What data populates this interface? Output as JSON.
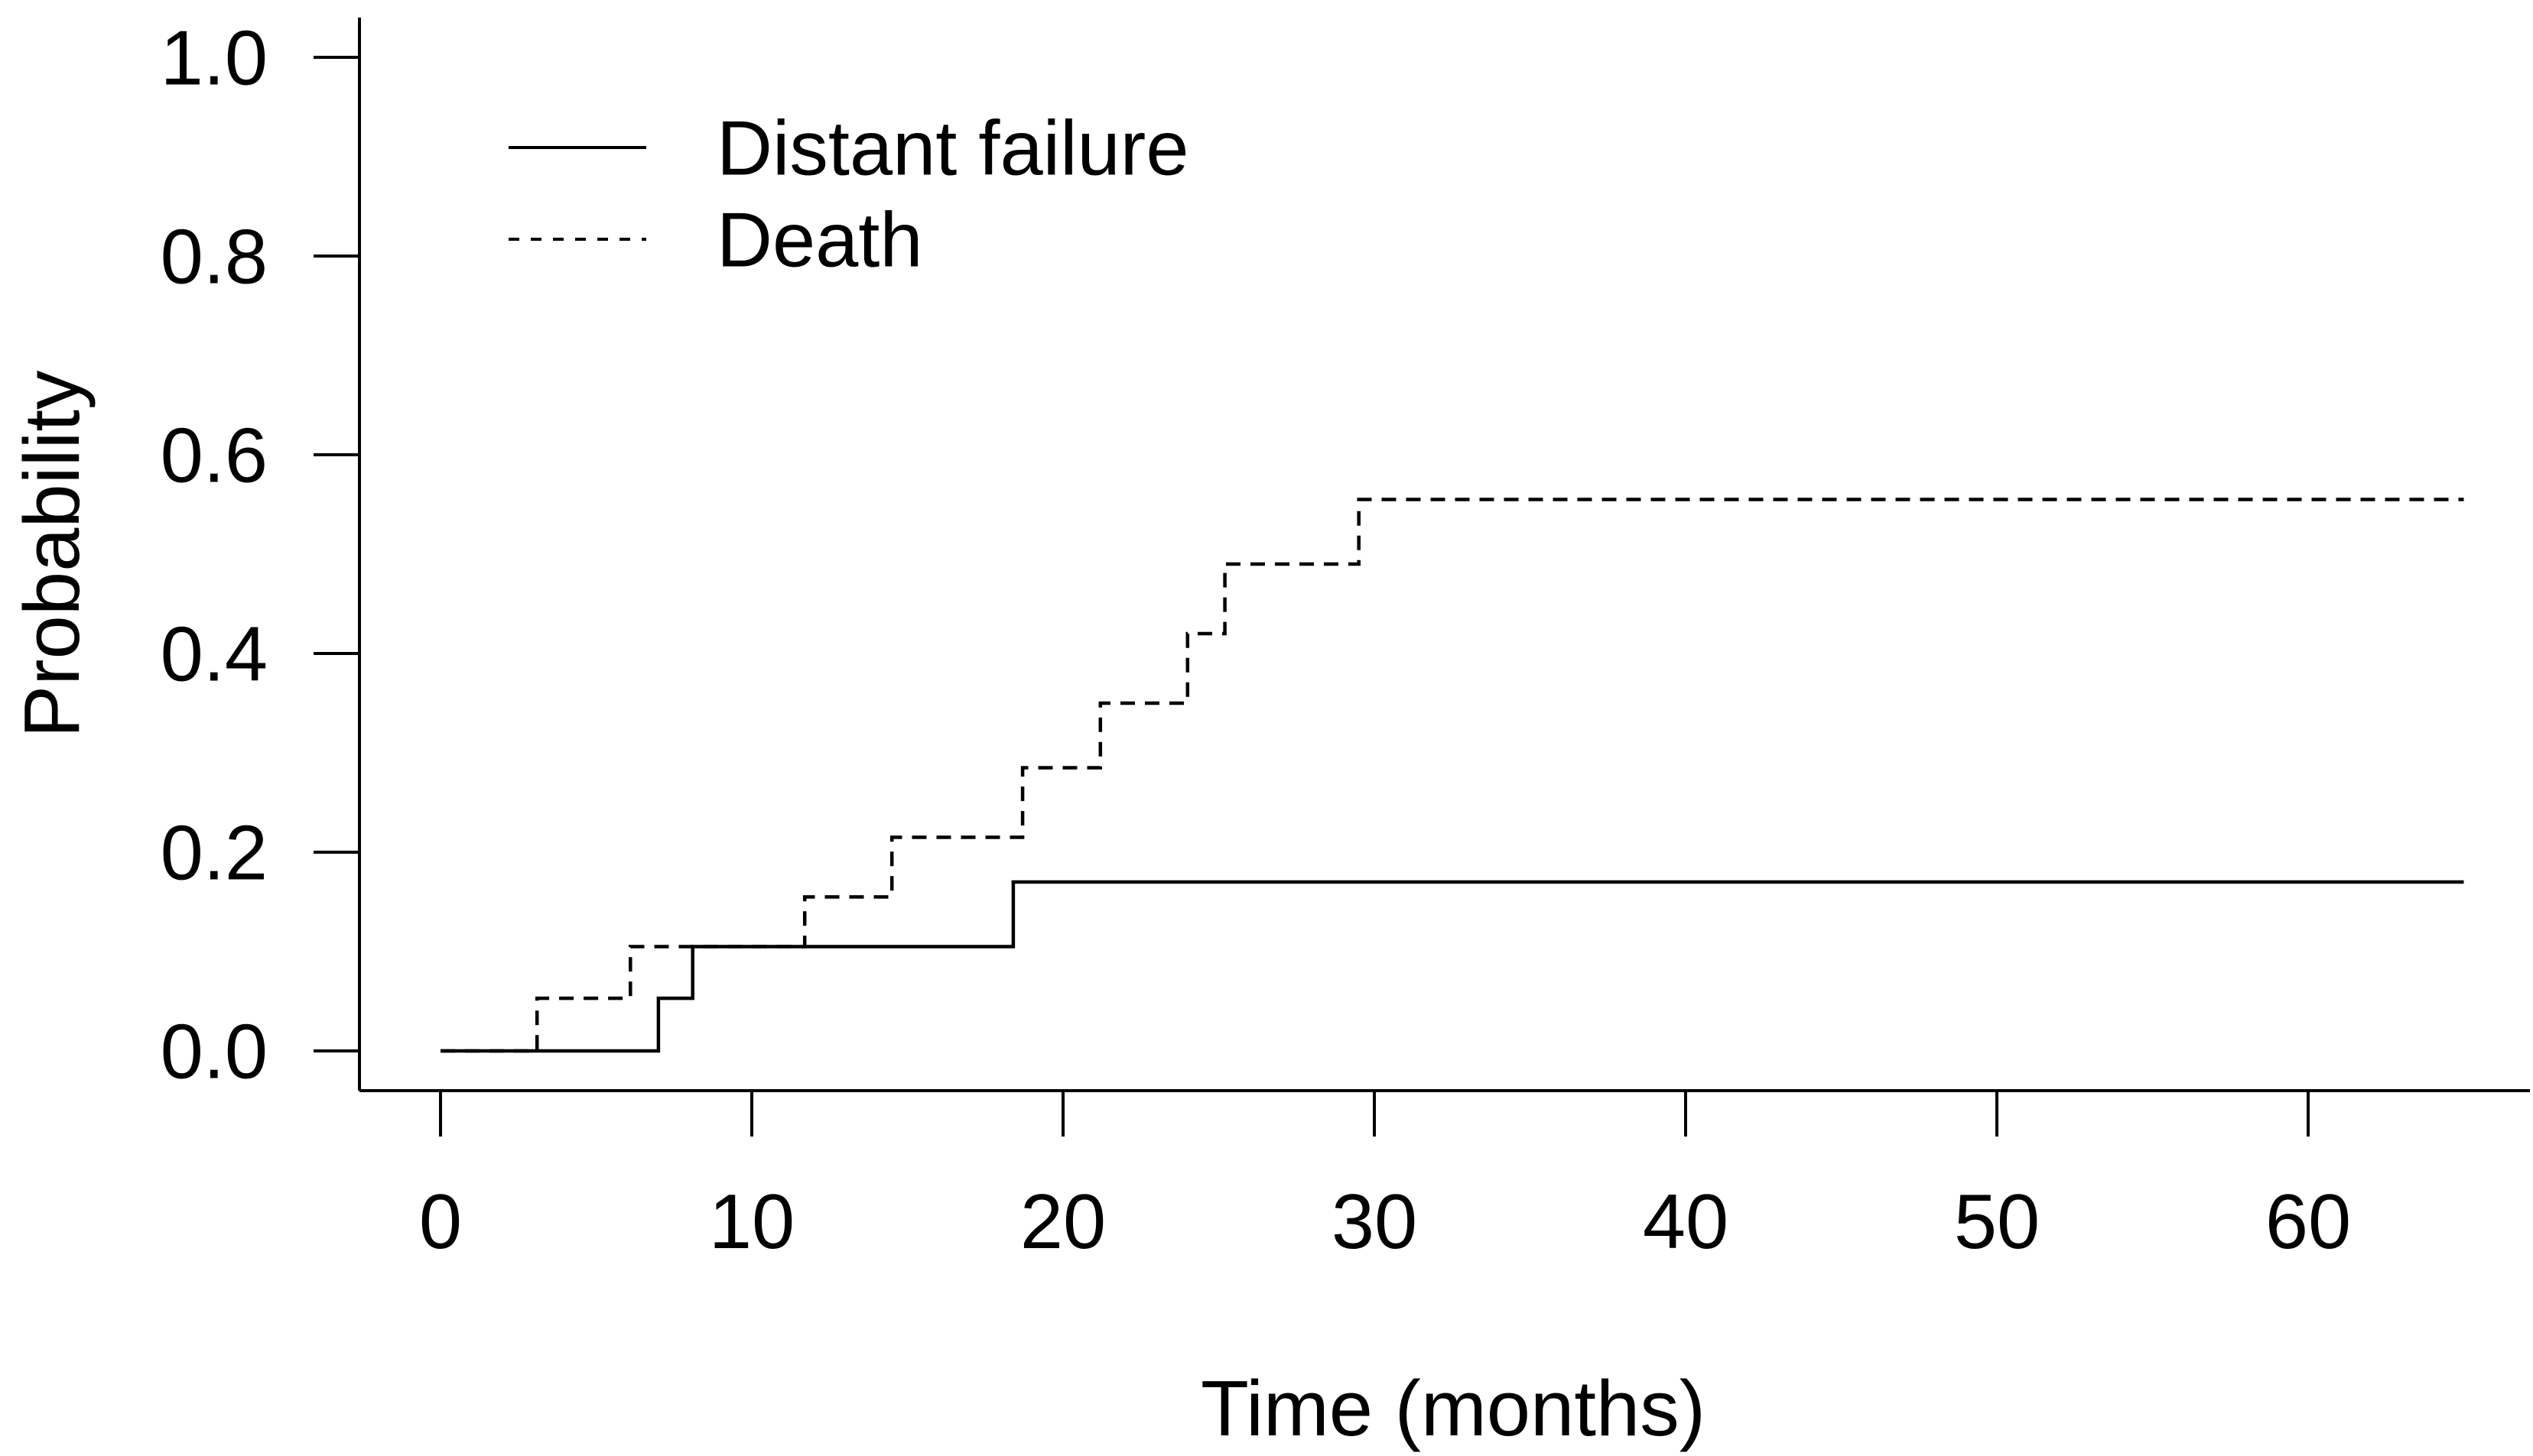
{
  "figure": {
    "background_color": "#ffffff",
    "line_color": "#000000",
    "title": ""
  },
  "chart_data": {
    "type": "line",
    "subtype": "step-survival",
    "title": "",
    "xlabel": "Time (months)",
    "ylabel": "Probability",
    "xlim": [
      0,
      65
    ],
    "ylim": [
      0.0,
      1.0
    ],
    "grid": false,
    "x_ticks": [
      0,
      10,
      20,
      30,
      40,
      50,
      60
    ],
    "y_ticks": [
      {
        "value": 0.0,
        "label": "0.0"
      },
      {
        "value": 0.2,
        "label": "0.2"
      },
      {
        "value": 0.4,
        "label": "0.4"
      },
      {
        "value": 0.6,
        "label": "0.6"
      },
      {
        "value": 0.8,
        "label": "0.8"
      },
      {
        "value": 1.0,
        "label": "1.0"
      }
    ],
    "legend_position": "top-left-inside",
    "legend": [
      {
        "label": "Distant failure",
        "line_style": "solid"
      },
      {
        "label": "Death",
        "line_style": "dashed"
      }
    ],
    "series": [
      {
        "name": "Distant failure",
        "line_style": "solid",
        "color": "#000000",
        "points": [
          [
            0,
            0.0
          ],
          [
            7.0,
            0.053
          ],
          [
            8.1,
            0.105
          ],
          [
            18.4,
            0.17
          ],
          [
            65,
            0.17
          ]
        ]
      },
      {
        "name": "Death",
        "line_style": "dashed",
        "color": "#000000",
        "points": [
          [
            0,
            0.0
          ],
          [
            3.1,
            0.053
          ],
          [
            6.1,
            0.105
          ],
          [
            11.7,
            0.155
          ],
          [
            14.5,
            0.215
          ],
          [
            18.7,
            0.285
          ],
          [
            21.2,
            0.35
          ],
          [
            24.0,
            0.42
          ],
          [
            25.2,
            0.49
          ],
          [
            29.5,
            0.555
          ],
          [
            65,
            0.555
          ]
        ]
      }
    ]
  }
}
